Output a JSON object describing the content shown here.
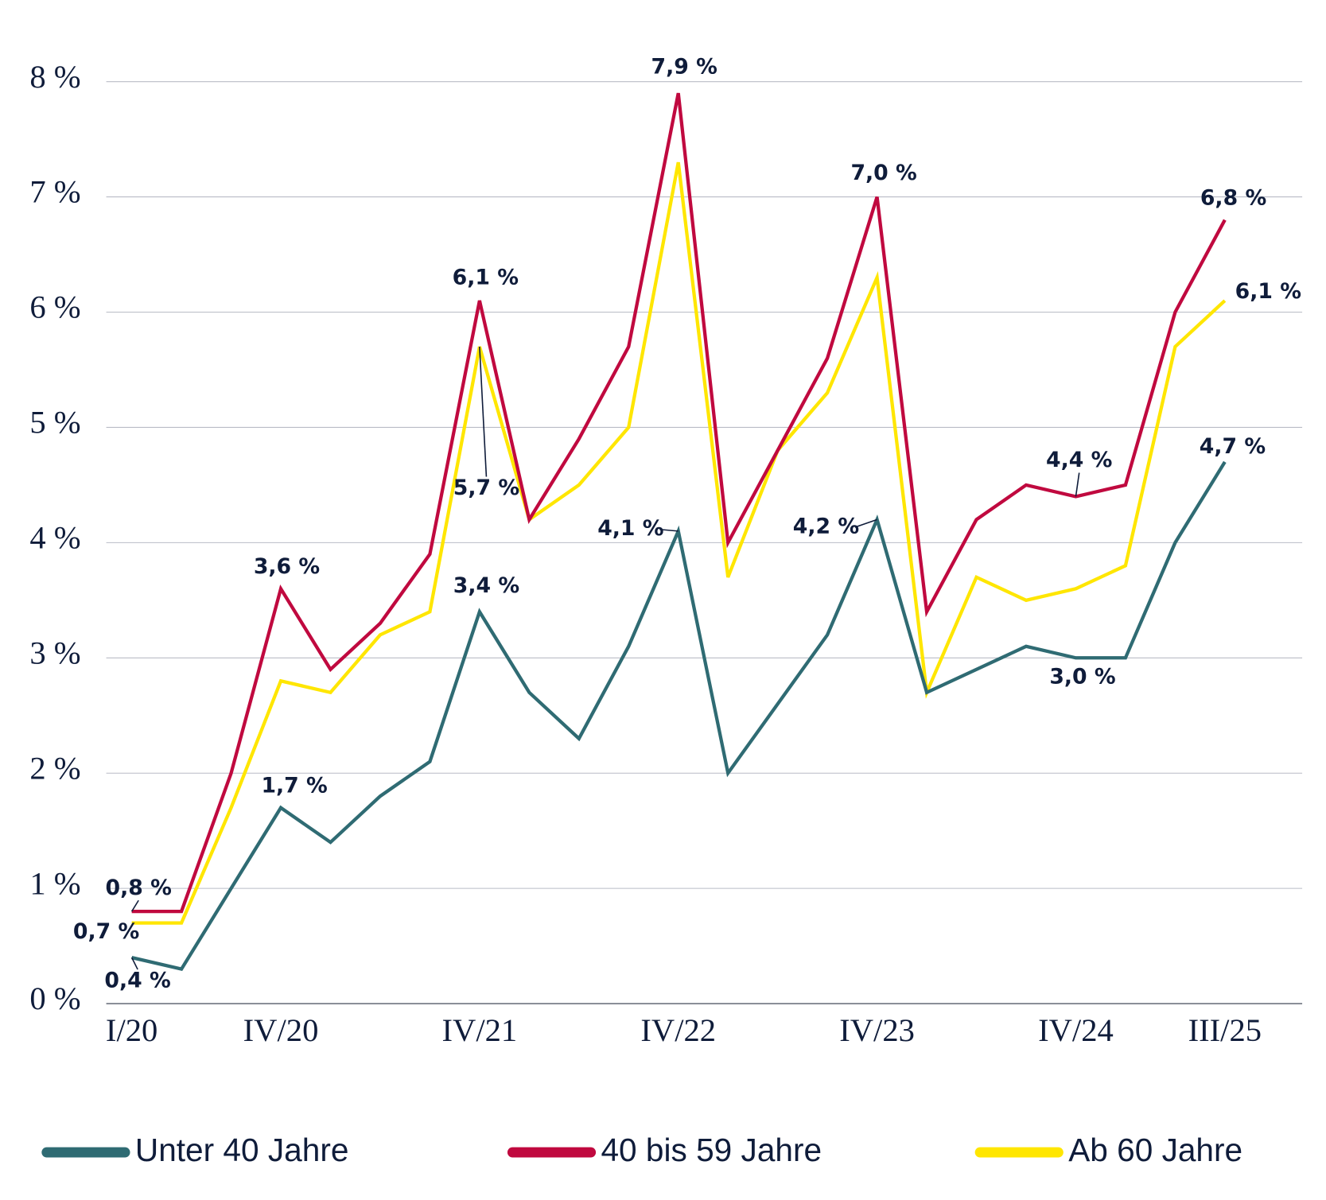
{
  "chart_data": {
    "type": "line",
    "categories": [
      "I/20",
      null,
      null,
      "IV/20",
      null,
      null,
      null,
      "IV/21",
      null,
      null,
      null,
      "IV/22",
      null,
      null,
      null,
      "IV/23",
      null,
      null,
      null,
      "IV/24",
      null,
      null,
      "III/25"
    ],
    "ylim": [
      0,
      8
    ],
    "yticks": [
      {
        "value": 0,
        "label": "0 %"
      },
      {
        "value": 1,
        "label": "1 %"
      },
      {
        "value": 2,
        "label": "2 %"
      },
      {
        "value": 3,
        "label": "3 %"
      },
      {
        "value": 4,
        "label": "4 %"
      },
      {
        "value": 5,
        "label": "5 %"
      },
      {
        "value": 6,
        "label": "6 %"
      },
      {
        "value": 7,
        "label": "7 %"
      },
      {
        "value": 8,
        "label": "8 %"
      }
    ],
    "grid": true,
    "series": [
      {
        "name": "Unter 40 Jahre",
        "color": "#2f6b73",
        "values": [
          0.4,
          0.3,
          1.0,
          1.7,
          1.4,
          1.8,
          2.1,
          3.4,
          2.7,
          2.3,
          3.1,
          4.1,
          2.0,
          2.6,
          3.2,
          4.2,
          2.7,
          2.9,
          3.1,
          3.0,
          3.0,
          4.0,
          4.7
        ],
        "value_labels": [
          "0,4 %",
          null,
          null,
          "1,7 %",
          null,
          null,
          null,
          "3,4 %",
          null,
          null,
          null,
          "4,1 %",
          null,
          null,
          null,
          "4,2 %",
          null,
          null,
          null,
          "3,0 %",
          null,
          null,
          "4,7 %"
        ]
      },
      {
        "name": "40 bis 59 Jahre",
        "color": "#c0093f",
        "values": [
          0.8,
          0.8,
          2.0,
          3.6,
          2.9,
          3.3,
          3.9,
          6.1,
          4.2,
          4.9,
          5.7,
          7.9,
          4.0,
          4.8,
          5.6,
          7.0,
          3.4,
          4.2,
          4.5,
          4.4,
          4.5,
          6.0,
          6.8
        ],
        "value_labels": [
          "0,8 %",
          null,
          null,
          "3,6 %",
          null,
          null,
          null,
          "6,1 %",
          null,
          null,
          null,
          "7,9 %",
          null,
          null,
          null,
          "7,0 %",
          null,
          null,
          null,
          "4,4 %",
          null,
          null,
          "6,8 %"
        ]
      },
      {
        "name": "Ab 60 Jahre",
        "color": "#ffe600",
        "values": [
          0.7,
          0.7,
          1.7,
          2.8,
          2.7,
          3.2,
          3.4,
          5.7,
          4.2,
          4.5,
          5.0,
          7.3,
          3.7,
          4.8,
          5.3,
          6.3,
          2.7,
          3.7,
          3.5,
          3.6,
          3.8,
          5.7,
          6.1
        ],
        "value_labels": [
          "0,7 %",
          null,
          null,
          null,
          null,
          null,
          null,
          "5,7 %",
          null,
          null,
          null,
          null,
          null,
          null,
          null,
          null,
          null,
          null,
          null,
          null,
          null,
          null,
          "6,1 %"
        ]
      }
    ]
  }
}
